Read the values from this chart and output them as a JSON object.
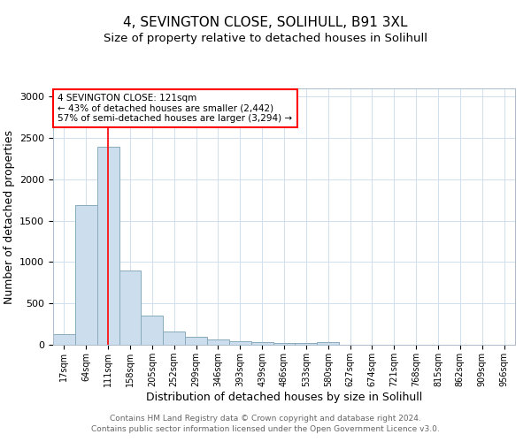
{
  "title": "4, SEVINGTON CLOSE, SOLIHULL, B91 3XL",
  "subtitle": "Size of property relative to detached houses in Solihull",
  "xlabel": "Distribution of detached houses by size in Solihull",
  "ylabel": "Number of detached properties",
  "bin_labels": [
    "17sqm",
    "64sqm",
    "111sqm",
    "158sqm",
    "205sqm",
    "252sqm",
    "299sqm",
    "346sqm",
    "393sqm",
    "439sqm",
    "486sqm",
    "533sqm",
    "580sqm",
    "627sqm",
    "674sqm",
    "721sqm",
    "768sqm",
    "815sqm",
    "862sqm",
    "909sqm",
    "956sqm"
  ],
  "bar_heights": [
    130,
    1690,
    2390,
    900,
    350,
    160,
    95,
    65,
    45,
    30,
    20,
    18,
    30,
    0,
    0,
    0,
    0,
    0,
    0,
    0,
    0
  ],
  "bar_color": "#ccdded",
  "bar_edge_color": "#88aabb",
  "vline_x": 2.0,
  "vline_color": "red",
  "annotation_box_text": "4 SEVINGTON CLOSE: 121sqm\n← 43% of detached houses are smaller (2,442)\n57% of semi-detached houses are larger (3,294) →",
  "annotation_box_color": "white",
  "annotation_box_edge_color": "red",
  "ylim": [
    0,
    3100
  ],
  "footer_line1": "Contains HM Land Registry data © Crown copyright and database right 2024.",
  "footer_line2": "Contains public sector information licensed under the Open Government Licence v3.0.",
  "bg_color": "white",
  "grid_color": "#d0e0ee",
  "title_fontsize": 11,
  "subtitle_fontsize": 9.5,
  "axis_label_fontsize": 9,
  "tick_fontsize": 7,
  "annotation_fontsize": 7.5,
  "footer_fontsize": 6.5
}
